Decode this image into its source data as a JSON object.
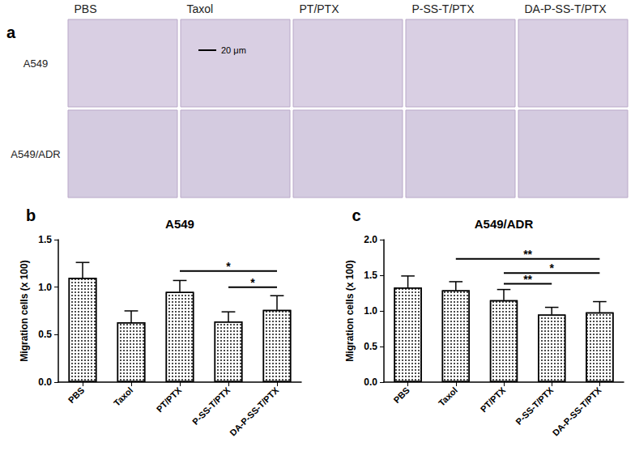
{
  "figure": {
    "panel_label": "a",
    "columns": [
      "PBS",
      "Taxol",
      "PT/PTX",
      "P-SS-T/PTX",
      "DA-P-SS-T/PTX"
    ],
    "rows": [
      "A549",
      "A549/ADR"
    ],
    "scale_bar": "20 μm"
  },
  "chart_data": [
    {
      "type": "bar",
      "title": "A549",
      "annotations": [
        "b"
      ],
      "categories": [
        "PBS",
        "Taxol",
        "PT/PTX",
        "P-SS-T/PTX",
        "DA-P-SS-T/PTX"
      ],
      "values": [
        1.1,
        0.63,
        0.95,
        0.64,
        0.76
      ],
      "errors": [
        0.16,
        0.12,
        0.12,
        0.1,
        0.15
      ],
      "color": "#ffffff",
      "ylabel": "Migration cells (x 100)",
      "ylim": [
        0,
        1.5
      ],
      "yticks": [
        {
          "value": 0,
          "label": "0.0"
        },
        0.5,
        {
          "value": 1,
          "label": "1.0"
        },
        1.5
      ],
      "significance": [
        {
          "from": "PT/PTX",
          "to": "DA-P-SS-T/PTX",
          "y": 1.17,
          "label": "*"
        },
        {
          "from": "P-SS-T/PTX",
          "to": "DA-P-SS-T/PTX",
          "y": 1.0,
          "label": "*"
        }
      ]
    },
    {
      "type": "bar",
      "title": "A549/ADR",
      "annotations": [
        "c"
      ],
      "categories": [
        "PBS",
        "Taxol",
        "PT/PTX",
        "P-SS-T/PTX",
        "DA-P-SS-T/PTX"
      ],
      "values": [
        1.33,
        1.29,
        1.15,
        0.95,
        0.98
      ],
      "errors": [
        0.16,
        0.12,
        0.15,
        0.1,
        0.15
      ],
      "color": "#ffffff",
      "ylabel": "Migration cells (x 100)",
      "ylim": [
        0,
        2.0
      ],
      "yticks": [
        {
          "value": 0,
          "label": "0.0"
        },
        0.5,
        {
          "value": 1,
          "label": "1.0"
        },
        1.5,
        {
          "value": 2,
          "label": "2.0"
        }
      ],
      "significance": [
        {
          "from": "Taxol",
          "to": "DA-P-SS-T/PTX",
          "y": 1.73,
          "label": "**"
        },
        {
          "from": "PT/PTX",
          "to": "DA-P-SS-T/PTX",
          "y": 1.53,
          "label": "*"
        },
        {
          "from": "PT/PTX",
          "to": "P-SS-T/PTX",
          "y": 1.38,
          "label": "**"
        }
      ]
    }
  ]
}
